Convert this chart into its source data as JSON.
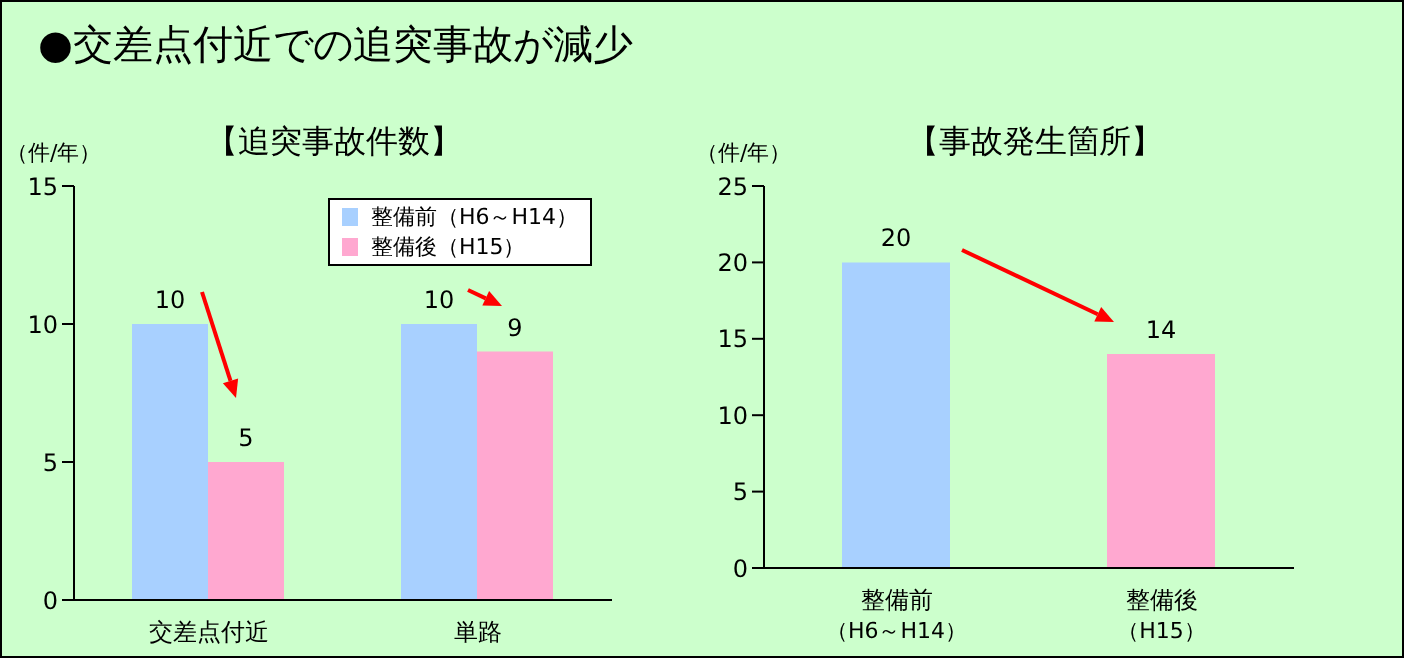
{
  "chart_data": [
    {
      "type": "bar",
      "title": "●交差点付近での追突事故が減少",
      "subtitle": "【追突事故件数】",
      "ylabel": "（件/年）",
      "categories": [
        "交差点付近",
        "単路"
      ],
      "series": [
        {
          "name": "整備前（H6～H14）",
          "color": "#a8d0ff",
          "values": [
            10,
            10
          ]
        },
        {
          "name": "整備後（H15）",
          "color": "#ffa8d0",
          "values": [
            5,
            9
          ]
        }
      ],
      "ylim": [
        0,
        15
      ],
      "yticks": [
        0,
        5,
        10,
        15
      ],
      "grid": false,
      "legend": "top right",
      "data_labels": true
    },
    {
      "type": "bar",
      "subtitle": "【事故発生箇所】",
      "ylabel": "（件/年）",
      "categories": [
        "整備前（H6～H14）",
        "整備後（H15）"
      ],
      "values": [
        20,
        14
      ],
      "colors": [
        "#a8d0ff",
        "#ffa8d0"
      ],
      "ylim": [
        0,
        25
      ],
      "yticks": [
        0,
        5,
        10,
        15,
        20,
        25
      ],
      "grid": false,
      "data_labels": true
    }
  ]
}
